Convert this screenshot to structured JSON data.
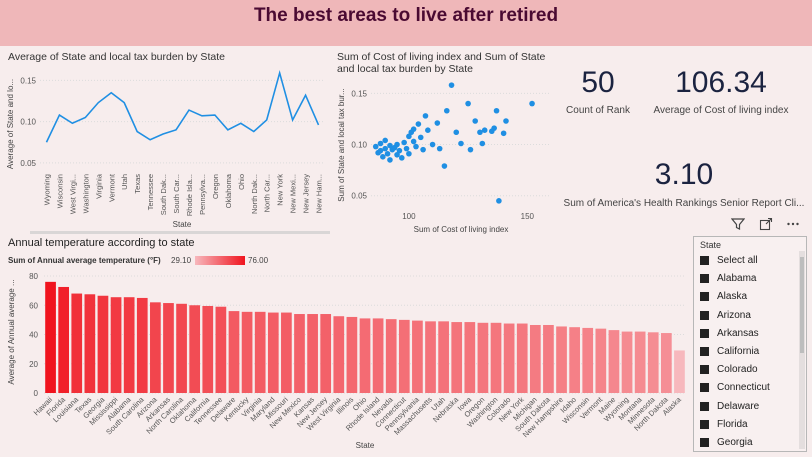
{
  "header": {
    "title": "The best areas to live after retired"
  },
  "line_visual": {
    "title": "Average of State and local tax burden by State"
  },
  "scatter_visual": {
    "title": "Sum of Cost of living index and Sum of State and local tax burden by State"
  },
  "cards": {
    "rank": {
      "value": "50",
      "label": "Count of Rank"
    },
    "col": {
      "value": "106.34",
      "label": "Average of Cost of living index"
    },
    "health": {
      "value": "3.10",
      "label": "Sum of America's Health Rankings Senior Report Cli..."
    }
  },
  "bar_visual": {
    "title": "Annual temperature according to state",
    "legend_title": "Sum of Annual average temperature (°F)",
    "legend_min": "29.10",
    "legend_max": "76.00"
  },
  "slicer": {
    "title": "State",
    "items": [
      "Select all",
      "Alabama",
      "Alaska",
      "Arizona",
      "Arkansas",
      "California",
      "Colorado",
      "Connecticut",
      "Delaware",
      "Florida",
      "Georgia"
    ]
  },
  "icons": [
    "filter-icon",
    "focus-mode-icon",
    "more-options-icon"
  ],
  "chart_data": [
    {
      "type": "line",
      "title": "Average of State and local tax burden by State",
      "xlabel": "State",
      "ylabel": "Average of State and lo...",
      "categories": [
        "Wyoming",
        "Wisconsin",
        "West Virgi...",
        "Washington",
        "Virginia",
        "Vermont",
        "Utah",
        "Texas",
        "Tennessee",
        "South Dak...",
        "South Car...",
        "Rhode Isla...",
        "Pennsylva...",
        "Oregon",
        "Oklahoma",
        "Ohio",
        "North Dak...",
        "North Car...",
        "New York",
        "New Mexi...",
        "New Jersey",
        "New Ham..."
      ],
      "values": [
        0.075,
        0.108,
        0.098,
        0.105,
        0.123,
        0.135,
        0.123,
        0.088,
        0.078,
        0.085,
        0.09,
        0.114,
        0.107,
        0.108,
        0.09,
        0.098,
        0.088,
        0.102,
        0.159,
        0.102,
        0.132,
        0.096
      ],
      "yticks": [
        0.05,
        0.1,
        0.15
      ],
      "ytick_labels": [
        "0.05",
        "0.10",
        "0.15"
      ],
      "ylim": [
        0.045,
        0.165
      ]
    },
    {
      "type": "scatter",
      "title": "Sum of Cost of living index and Sum of State and local tax burden by State",
      "xlabel": "Sum of Cost of living index",
      "ylabel": "Sum of State and local tax bur...",
      "xticks": [
        100,
        150
      ],
      "xtick_labels": [
        "100",
        "150"
      ],
      "yticks": [
        0.05,
        0.1,
        0.15
      ],
      "ytick_labels": [
        "0.05",
        "0.10",
        "0.15"
      ],
      "xlim": [
        84,
        160
      ],
      "ylim": [
        0.038,
        0.165
      ],
      "points": [
        [
          86,
          0.098
        ],
        [
          87,
          0.092
        ],
        [
          88,
          0.101
        ],
        [
          88,
          0.094
        ],
        [
          89,
          0.088
        ],
        [
          90,
          0.096
        ],
        [
          90,
          0.104
        ],
        [
          91,
          0.091
        ],
        [
          92,
          0.099
        ],
        [
          92,
          0.085
        ],
        [
          93,
          0.095
        ],
        [
          94,
          0.097
        ],
        [
          95,
          0.09
        ],
        [
          95,
          0.1
        ],
        [
          96,
          0.094
        ],
        [
          97,
          0.087
        ],
        [
          98,
          0.102
        ],
        [
          99,
          0.096
        ],
        [
          100,
          0.108
        ],
        [
          100,
          0.091
        ],
        [
          101,
          0.112
        ],
        [
          102,
          0.115
        ],
        [
          102,
          0.103
        ],
        [
          103,
          0.098
        ],
        [
          104,
          0.12
        ],
        [
          105,
          0.107
        ],
        [
          106,
          0.095
        ],
        [
          107,
          0.128
        ],
        [
          108,
          0.114
        ],
        [
          110,
          0.1
        ],
        [
          112,
          0.121
        ],
        [
          113,
          0.096
        ],
        [
          115,
          0.079
        ],
        [
          116,
          0.133
        ],
        [
          118,
          0.158
        ],
        [
          120,
          0.112
        ],
        [
          122,
          0.101
        ],
        [
          125,
          0.14
        ],
        [
          126,
          0.095
        ],
        [
          128,
          0.123
        ],
        [
          130,
          0.112
        ],
        [
          131,
          0.101
        ],
        [
          132,
          0.114
        ],
        [
          135,
          0.113
        ],
        [
          136,
          0.116
        ],
        [
          137,
          0.133
        ],
        [
          138,
          0.045
        ],
        [
          140,
          0.111
        ],
        [
          141,
          0.123
        ],
        [
          152,
          0.14
        ]
      ]
    },
    {
      "type": "bar",
      "title": "Annual temperature according to state",
      "xlabel": "State",
      "ylabel": "Average of Annual average ...",
      "yticks": [
        0,
        20,
        40,
        60,
        80
      ],
      "ytick_labels": [
        "0",
        "20",
        "40",
        "60",
        "80"
      ],
      "ylim": [
        0,
        80
      ],
      "color_min_value": 29.1,
      "color_max_value": 76.0,
      "color_min": "#f7b8bd",
      "color_max": "#f0141e",
      "categories": [
        "Hawaii",
        "Florida",
        "Louisiana",
        "Texas",
        "Georgia",
        "Mississippi",
        "Alabama",
        "South Carolina",
        "Arizona",
        "Arkansas",
        "North Carolina",
        "Oklahoma",
        "California",
        "Tennessee",
        "Delaware",
        "Kentucky",
        "Virginia",
        "Maryland",
        "Missouri",
        "New Mexico",
        "Kansas",
        "New Jersey",
        "West Virginia",
        "Illinois",
        "Ohio",
        "Rhode Island",
        "Nevada",
        "Connecticut",
        "Pennsylvania",
        "Massachusetts",
        "Utah",
        "Nebraska",
        "Iowa",
        "Oregon",
        "Washington",
        "Colorado",
        "New York",
        "Michigan",
        "South Dakota",
        "New Hampshire",
        "Idaho",
        "Wisconsin",
        "Vermont",
        "Maine",
        "Wyoming",
        "Montana",
        "Minnesota",
        "North Dakota",
        "Alaska"
      ],
      "values": [
        76.0,
        72.5,
        68.0,
        67.5,
        66.5,
        65.5,
        65.5,
        65.0,
        62.0,
        61.5,
        61.0,
        60.0,
        59.5,
        59.0,
        56.0,
        55.5,
        55.5,
        55.0,
        55.0,
        54.0,
        54.0,
        54.0,
        52.5,
        52.0,
        51.0,
        51.0,
        50.5,
        50.0,
        49.5,
        49.0,
        49.0,
        48.5,
        48.5,
        48.0,
        48.0,
        47.5,
        47.5,
        46.5,
        46.5,
        45.5,
        45.0,
        44.5,
        44.0,
        43.0,
        42.0,
        42.0,
        41.5,
        41.0,
        29.1
      ]
    }
  ]
}
